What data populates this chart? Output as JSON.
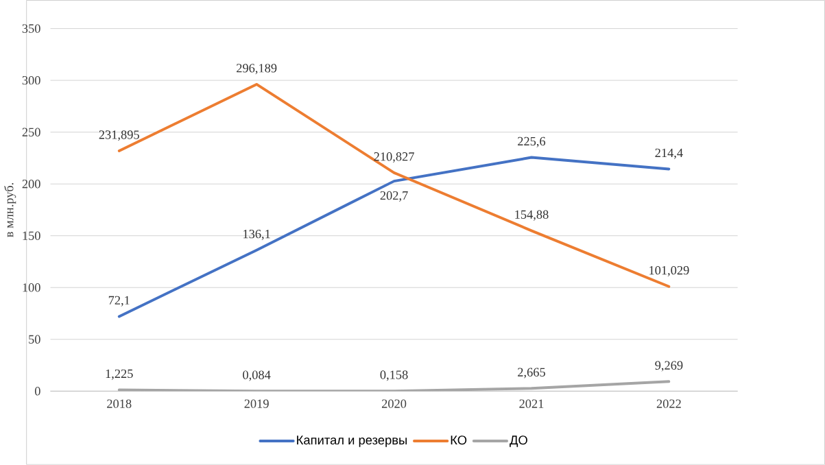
{
  "chart_data": {
    "type": "line",
    "ylabel": "в млн.руб.",
    "categories": [
      "2018",
      "2019",
      "2020",
      "2021",
      "2022"
    ],
    "series": [
      {
        "name": "Капитал и резервы",
        "color": "#4472c4",
        "values": [
          72.1,
          136.1,
          202.7,
          225.6,
          214.4
        ],
        "value_labels": [
          "72,1",
          "136,1",
          "202,7",
          "225,6",
          "214,4"
        ]
      },
      {
        "name": "КО",
        "color": "#ed7d31",
        "values": [
          231.895,
          296.189,
          210.827,
          154.88,
          101.029
        ],
        "value_labels": [
          "231,895",
          "296,189",
          "210,827",
          "154,88",
          "101,029"
        ]
      },
      {
        "name": "ДО",
        "color": "#a5a5a5",
        "values": [
          1.225,
          0.084,
          0.158,
          2.665,
          9.269
        ],
        "value_labels": [
          "1,225",
          "0,084",
          "0,158",
          "2,665",
          "9,269"
        ]
      }
    ],
    "ylim": [
      0,
      350
    ],
    "yticks": [
      0,
      50,
      100,
      150,
      200,
      250,
      300,
      350
    ],
    "grid": "y",
    "legend": "bottom",
    "marker": "none",
    "line_style": "solid"
  }
}
